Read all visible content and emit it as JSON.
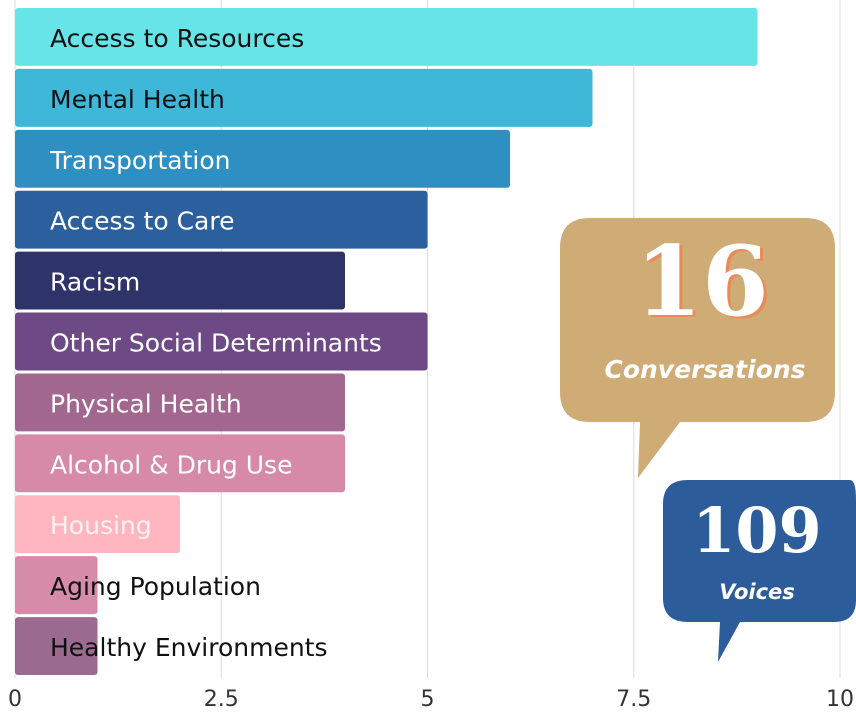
{
  "chart_data": {
    "type": "barh",
    "categories": [
      "Access to Resources",
      "Mental Health",
      "Transportation",
      "Access to Care",
      "Racism",
      "Other Social Determinants",
      "Physical Health",
      "Alcohol & Drug Use",
      "Housing",
      "Aging Population",
      "Healthy Environments"
    ],
    "values": [
      9,
      7,
      6,
      5,
      4,
      5,
      4,
      4,
      2,
      1,
      1
    ],
    "colors": [
      "#67e4e8",
      "#3fb7d9",
      "#2e8fc2",
      "#2c5f9e",
      "#2e336a",
      "#6d4a85",
      "#a2678f",
      "#d78aa7",
      "#ffb6c0",
      "#d58ca9",
      "#9b6a8f"
    ],
    "label_colors": [
      "#111111",
      "#111111",
      "#ffffff",
      "#ffffff",
      "#ffffff",
      "#ffffff",
      "#ffffff",
      "#ffffff",
      "#fff0f2",
      "#111111",
      "#111111"
    ],
    "xlim": [
      0,
      10
    ],
    "xticks": [
      0,
      2.5,
      5,
      7.5,
      10
    ],
    "grid": true,
    "annotations": [
      {
        "value": 16,
        "label": "Conversations"
      },
      {
        "value": 109,
        "label": "Voices"
      }
    ]
  }
}
